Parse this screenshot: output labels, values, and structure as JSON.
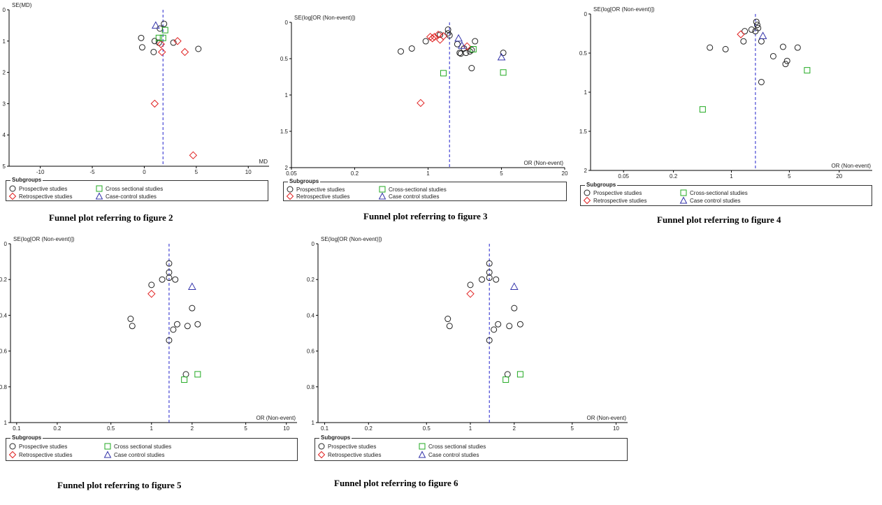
{
  "styles": {
    "circle_color": "#222222",
    "diamond_color": "#e02020",
    "square_color": "#22aa22",
    "triangle_color": "#3333aa",
    "line_color": "#2222cc",
    "axis_color": "#000000"
  },
  "chart_data": [
    {
      "type": "scatter",
      "subtype": "funnel",
      "caption": "Funnel plot referring to figure 2",
      "ylabel": "SE(MD)",
      "xlabel": "MD",
      "xscale": "linear",
      "xlim": [
        -13,
        12
      ],
      "ylim": [
        0,
        5
      ],
      "xticks": [
        -10,
        -5,
        0,
        5,
        10
      ],
      "xtick_labels": [
        "-10",
        "-5",
        "0",
        "5",
        "10"
      ],
      "yticks": [
        0,
        1,
        2,
        3,
        4,
        5
      ],
      "ytick_labels": [
        "0",
        "1",
        "2",
        "3",
        "4",
        "5"
      ],
      "summary": 1.8,
      "legend": {
        "title": "Subgroups",
        "items": [
          {
            "symbol": "circle",
            "label": "Prospective studies"
          },
          {
            "symbol": "square",
            "label": "Cross sectional studies"
          },
          {
            "symbol": "diamond",
            "label": "Retrospective studies"
          },
          {
            "symbol": "triangle",
            "label": "Case-control studies"
          }
        ]
      },
      "series": [
        {
          "symbol": "circle",
          "points": [
            [
              1.9,
              0.45
            ],
            [
              1.5,
              0.6
            ],
            [
              -0.3,
              0.9
            ],
            [
              -0.2,
              1.2
            ],
            [
              1.0,
              1.0
            ],
            [
              1.4,
              1.05
            ],
            [
              0.9,
              1.35
            ],
            [
              2.8,
              1.05
            ],
            [
              5.2,
              1.25
            ]
          ]
        },
        {
          "symbol": "diamond",
          "points": [
            [
              3.2,
              1.0
            ],
            [
              1.6,
              1.1
            ],
            [
              1.7,
              1.35
            ],
            [
              3.9,
              1.35
            ],
            [
              1.0,
              3.0
            ],
            [
              4.7,
              4.65
            ]
          ]
        },
        {
          "symbol": "square",
          "points": [
            [
              1.4,
              0.9
            ],
            [
              1.8,
              0.9
            ],
            [
              2.0,
              0.65
            ]
          ]
        },
        {
          "symbol": "triangle",
          "points": [
            [
              1.1,
              0.5
            ]
          ]
        }
      ]
    },
    {
      "type": "scatter",
      "subtype": "funnel",
      "caption": "Funnel plot referring to figure 3",
      "ylabel": "SE(log[OR (Non-event)])",
      "xlabel": "OR (Non-event)",
      "xscale": "log",
      "xlim": [
        0.05,
        20
      ],
      "ylim": [
        0,
        2
      ],
      "xticks": [
        0.05,
        0.2,
        1,
        5,
        20
      ],
      "xtick_labels": [
        "0.05",
        "0.2",
        "1",
        "5",
        "20"
      ],
      "yticks": [
        0,
        0.5,
        1,
        1.5,
        2
      ],
      "ytick_labels": [
        "0",
        "0.5",
        "1",
        "1.5",
        "2"
      ],
      "summary": 1.6,
      "legend": {
        "title": "Subgroups",
        "items": [
          {
            "symbol": "circle",
            "label": "Prospective studies"
          },
          {
            "symbol": "square",
            "label": "Cross-sectional studies"
          },
          {
            "symbol": "diamond",
            "label": "Retrospective studies"
          },
          {
            "symbol": "triangle",
            "label": "Case control studies"
          }
        ]
      },
      "series": [
        {
          "symbol": "circle",
          "points": [
            [
              1.55,
              0.1
            ],
            [
              1.55,
              0.15
            ],
            [
              1.6,
              0.18
            ],
            [
              0.55,
              0.4
            ],
            [
              0.7,
              0.36
            ],
            [
              0.95,
              0.26
            ],
            [
              1.3,
              0.17
            ],
            [
              1.9,
              0.3
            ],
            [
              2.2,
              0.36
            ],
            [
              2.3,
              0.42
            ],
            [
              2.0,
              0.42
            ],
            [
              2.05,
              0.43
            ],
            [
              2.6,
              0.38
            ],
            [
              2.5,
              0.4
            ],
            [
              2.8,
              0.26
            ],
            [
              5.2,
              0.42
            ],
            [
              2.6,
              0.63
            ]
          ]
        },
        {
          "symbol": "diamond",
          "points": [
            [
              1.05,
              0.2
            ],
            [
              1.1,
              0.22
            ],
            [
              1.15,
              0.2
            ],
            [
              1.25,
              0.17
            ],
            [
              1.4,
              0.19
            ],
            [
              1.3,
              0.24
            ],
            [
              2.35,
              0.33
            ],
            [
              0.85,
              1.11
            ]
          ]
        },
        {
          "symbol": "square",
          "points": [
            [
              2.7,
              0.37
            ],
            [
              1.4,
              0.7
            ],
            [
              5.2,
              0.69
            ]
          ]
        },
        {
          "symbol": "triangle",
          "points": [
            [
              1.95,
              0.22
            ],
            [
              2.1,
              0.32
            ],
            [
              5.0,
              0.48
            ]
          ]
        }
      ]
    },
    {
      "type": "scatter",
      "subtype": "funnel",
      "caption": "Funnel plot referring to figure 4",
      "ylabel": "SE(log[OR (Non-event)])",
      "xlabel": "OR (Non-event)",
      "xscale": "log",
      "xlim": [
        0.02,
        50
      ],
      "ylim": [
        0,
        2
      ],
      "xticks": [
        0.05,
        0.2,
        1,
        5,
        20
      ],
      "xtick_labels": [
        "0.05",
        "0.2",
        "1",
        "5",
        "20"
      ],
      "yticks": [
        0,
        0.5,
        1,
        1.5,
        2
      ],
      "ytick_labels": [
        "0",
        "0.5",
        "1",
        "1.5",
        "2"
      ],
      "summary": 1.95,
      "legend": {
        "title": "Subgroups",
        "items": [
          {
            "symbol": "circle",
            "label": "Prospective studies"
          },
          {
            "symbol": "square",
            "label": "Cross-sectional studies"
          },
          {
            "symbol": "diamond",
            "label": "Retrospective studies"
          },
          {
            "symbol": "triangle",
            "label": "Case control studies"
          }
        ]
      },
      "series": [
        {
          "symbol": "circle",
          "points": [
            [
              2.0,
              0.1
            ],
            [
              2.05,
              0.14
            ],
            [
              2.1,
              0.18
            ],
            [
              1.95,
              0.22
            ],
            [
              1.75,
              0.2
            ],
            [
              1.45,
              0.22
            ],
            [
              1.4,
              0.35
            ],
            [
              2.3,
              0.35
            ],
            [
              3.2,
              0.54
            ],
            [
              4.2,
              0.42
            ],
            [
              4.5,
              0.64
            ],
            [
              4.7,
              0.6
            ],
            [
              6.3,
              0.43
            ],
            [
              0.55,
              0.43
            ],
            [
              0.85,
              0.45
            ],
            [
              2.3,
              0.87
            ]
          ]
        },
        {
          "symbol": "diamond",
          "points": [
            [
              1.3,
              0.26
            ]
          ]
        },
        {
          "symbol": "square",
          "points": [
            [
              8.2,
              0.72
            ],
            [
              0.45,
              1.22
            ]
          ]
        },
        {
          "symbol": "triangle",
          "points": [
            [
              2.4,
              0.28
            ]
          ]
        }
      ]
    },
    {
      "type": "scatter",
      "subtype": "funnel",
      "caption": "Funnel plot referring to figure 5",
      "ylabel": "SE(log[OR (Non-event)])",
      "xlabel": "OR (Non-event)",
      "xscale": "log",
      "xlim": [
        0.09,
        12
      ],
      "ylim": [
        0,
        1
      ],
      "xticks": [
        0.1,
        0.2,
        0.5,
        1,
        2,
        5,
        10
      ],
      "xtick_labels": [
        "0.1",
        "0.2",
        "0.5",
        "1",
        "2",
        "5",
        "10"
      ],
      "yticks": [
        0,
        0.2,
        0.4,
        0.6,
        0.8,
        1
      ],
      "ytick_labels": [
        "0",
        "0.2",
        "0.4",
        "0.6",
        "0.8",
        "1"
      ],
      "summary": 1.35,
      "legend": {
        "title": "Subgroups",
        "items": [
          {
            "symbol": "circle",
            "label": "Prospective studies"
          },
          {
            "symbol": "square",
            "label": "Cross sectional studies"
          },
          {
            "symbol": "diamond",
            "label": "Retrospective studies"
          },
          {
            "symbol": "triangle",
            "label": "Case control studies"
          }
        ]
      },
      "series": [
        {
          "symbol": "circle",
          "points": [
            [
              1.35,
              0.11
            ],
            [
              1.35,
              0.16
            ],
            [
              1.35,
              0.19
            ],
            [
              1.2,
              0.2
            ],
            [
              1.5,
              0.2
            ],
            [
              1.0,
              0.23
            ],
            [
              2.0,
              0.36
            ],
            [
              0.7,
              0.42
            ],
            [
              0.72,
              0.46
            ],
            [
              1.55,
              0.45
            ],
            [
              1.45,
              0.48
            ],
            [
              1.85,
              0.46
            ],
            [
              2.2,
              0.45
            ],
            [
              1.35,
              0.54
            ],
            [
              1.8,
              0.73
            ]
          ]
        },
        {
          "symbol": "diamond",
          "points": [
            [
              1.0,
              0.28
            ]
          ]
        },
        {
          "symbol": "square",
          "points": [
            [
              2.2,
              0.73
            ],
            [
              1.75,
              0.76
            ]
          ]
        },
        {
          "symbol": "triangle",
          "points": [
            [
              2.0,
              0.24
            ]
          ]
        }
      ]
    },
    {
      "type": "scatter",
      "subtype": "funnel",
      "caption": "Funnel plot referring to figure 6",
      "ylabel": "SE(log[OR (Non-event)])",
      "xlabel": "OR (Non-event)",
      "xscale": "log",
      "xlim": [
        0.09,
        12
      ],
      "ylim": [
        0,
        1
      ],
      "xticks": [
        0.1,
        0.2,
        0.5,
        1,
        2,
        5,
        10
      ],
      "xtick_labels": [
        "0.1",
        "0.2",
        "0.5",
        "1",
        "2",
        "5",
        "10"
      ],
      "yticks": [
        0,
        0.2,
        0.4,
        0.6,
        0.8,
        1
      ],
      "ytick_labels": [
        "0",
        "0.2",
        "0.4",
        "0.6",
        "0.8",
        "1"
      ],
      "summary": 1.35,
      "legend": {
        "title": "Subgroups",
        "items": [
          {
            "symbol": "circle",
            "label": "Prospective studies"
          },
          {
            "symbol": "square",
            "label": "Cross sectional studies"
          },
          {
            "symbol": "diamond",
            "label": "Retrospective studies"
          },
          {
            "symbol": "triangle",
            "label": "Case control studies"
          }
        ]
      },
      "series": [
        {
          "symbol": "circle",
          "points": [
            [
              1.35,
              0.11
            ],
            [
              1.35,
              0.16
            ],
            [
              1.35,
              0.19
            ],
            [
              1.2,
              0.2
            ],
            [
              1.5,
              0.2
            ],
            [
              1.0,
              0.23
            ],
            [
              2.0,
              0.36
            ],
            [
              0.7,
              0.42
            ],
            [
              0.72,
              0.46
            ],
            [
              1.55,
              0.45
            ],
            [
              1.45,
              0.48
            ],
            [
              1.85,
              0.46
            ],
            [
              2.2,
              0.45
            ],
            [
              1.35,
              0.54
            ],
            [
              1.8,
              0.73
            ]
          ]
        },
        {
          "symbol": "diamond",
          "points": [
            [
              1.0,
              0.28
            ]
          ]
        },
        {
          "symbol": "square",
          "points": [
            [
              2.2,
              0.73
            ],
            [
              1.75,
              0.76
            ]
          ]
        },
        {
          "symbol": "triangle",
          "points": [
            [
              2.0,
              0.24
            ]
          ]
        }
      ]
    }
  ]
}
